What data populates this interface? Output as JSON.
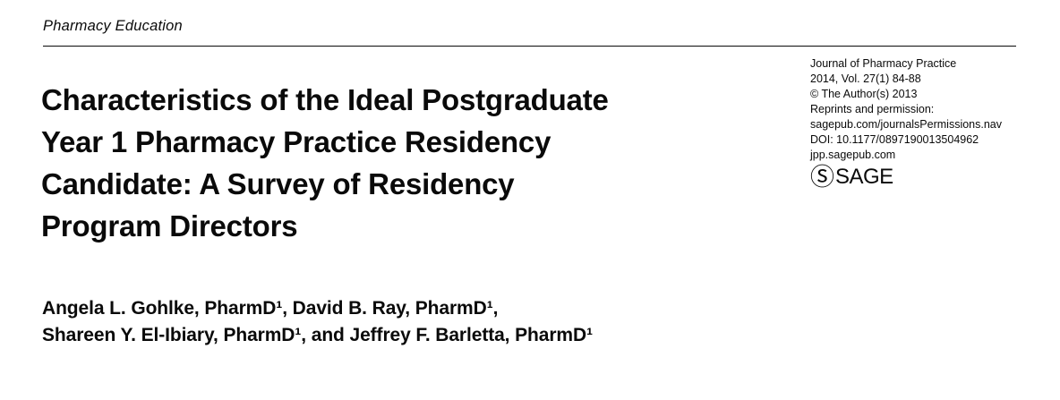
{
  "kicker": {
    "label": "Pharmacy Education"
  },
  "title": {
    "lines": [
      "Characteristics of the Ideal Postgraduate",
      "Year 1 Pharmacy Practice Residency",
      "Candidate: A Survey of Residency",
      "Program Directors"
    ]
  },
  "journal": {
    "name": "Journal of Pharmacy Practice",
    "lines": [
      "Journal of Pharmacy Practice",
      "2014, Vol. 27(1) 84-88",
      "© The Author(s) 2013",
      "Reprints and permission:",
      "sagepub.com/journalsPermissions.nav",
      "DOI: 10.1177/0897190013504962",
      "jpp.sagepub.com"
    ],
    "logo": {
      "mark": "Ⓢ",
      "text": "SAGE"
    }
  },
  "authors": {
    "lines": [
      "Angela L. Gohlke, PharmD¹, David B. Ray, PharmD¹,",
      "Shareen Y. El-Ibiary, PharmD¹, and Jeffrey F. Barletta, PharmD¹"
    ]
  },
  "colors": {
    "text": "#0a0a0a",
    "background": "#ffffff",
    "rule": "#0a0a0a"
  }
}
